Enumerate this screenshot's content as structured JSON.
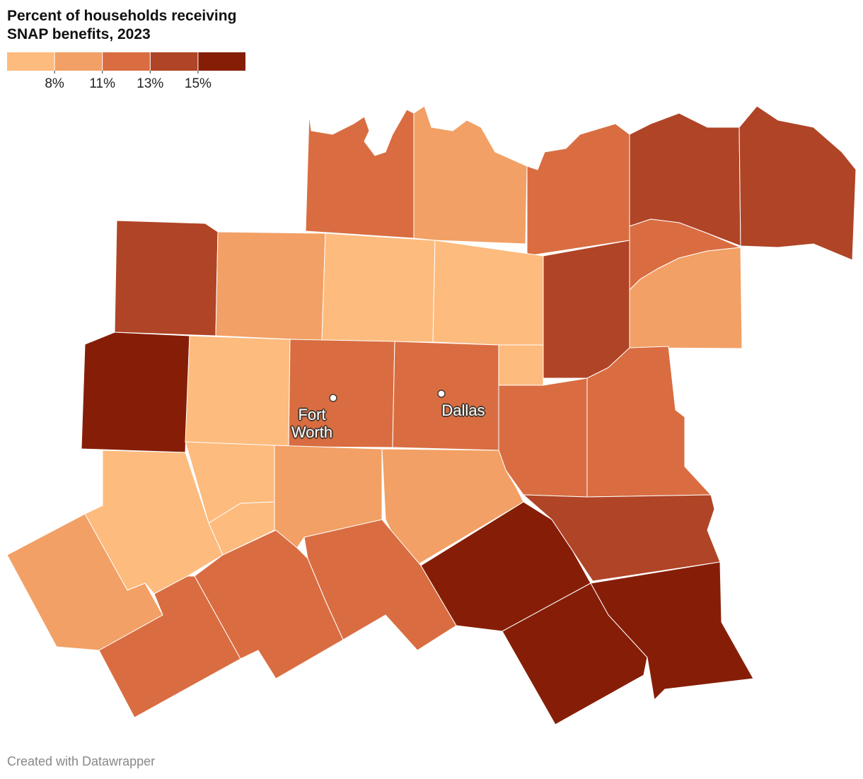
{
  "chart_data": {
    "type": "choropleth",
    "title": "Percent of households receiving SNAP benefits, 2023",
    "legend": {
      "colors": [
        "#fdbb7e",
        "#f2a065",
        "#d96d41",
        "#b04426",
        "#861e07"
      ],
      "ticks": [
        {
          "value": 8,
          "label": "8%"
        },
        {
          "value": 11,
          "label": "11%"
        },
        {
          "value": 13,
          "label": "13%"
        },
        {
          "value": 15,
          "label": "15%"
        }
      ]
    },
    "values": [
      12,
      9.5,
      12,
      14,
      14,
      12,
      9.5,
      14,
      14,
      9.5,
      7,
      7,
      7,
      16,
      7,
      12,
      12,
      12,
      12,
      7,
      7,
      7,
      9.5,
      9.5,
      14,
      16,
      16,
      16,
      12,
      12,
      9.5,
      12
    ],
    "cities": [
      {
        "name": "Fort Worth"
      },
      {
        "name": "Dallas"
      }
    ],
    "credit": "Created with Datawrapper"
  }
}
